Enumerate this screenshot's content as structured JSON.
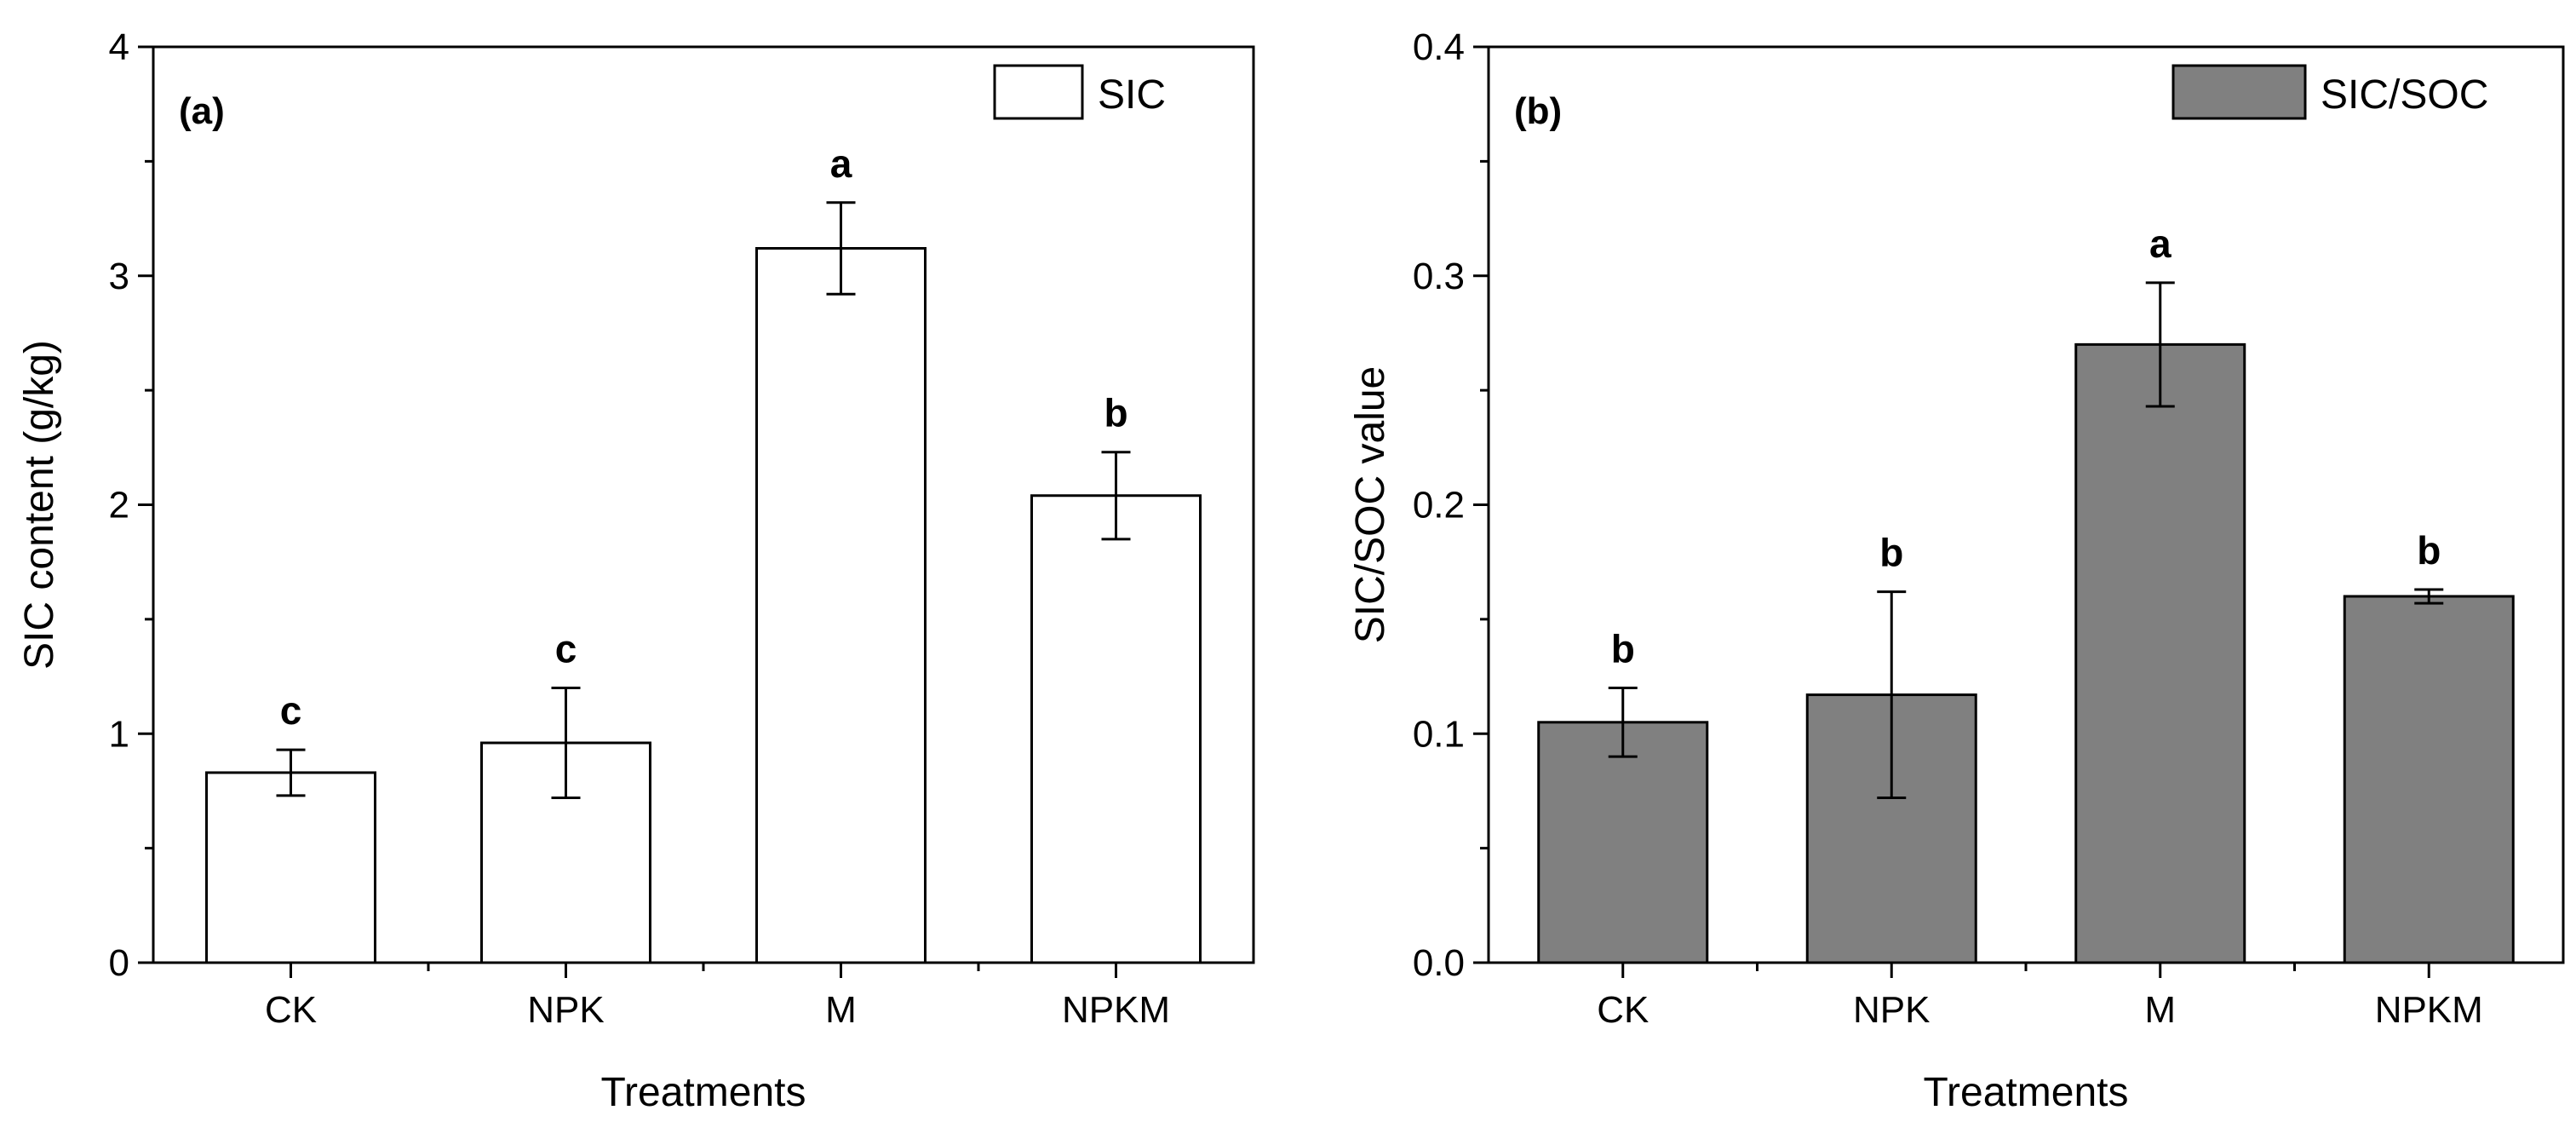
{
  "chart_data": [
    {
      "type": "bar",
      "panel_label": "(a)",
      "categories": [
        "CK",
        "NPK",
        "M",
        "NPKM"
      ],
      "series": [
        {
          "name": "SIC",
          "color": "#ffffff",
          "values": [
            0.83,
            0.96,
            3.12,
            2.04
          ],
          "errors": [
            0.1,
            0.24,
            0.2,
            0.19
          ],
          "significance": [
            "c",
            "c",
            "a",
            "b"
          ]
        }
      ],
      "xlabel": "Treatments",
      "ylabel": "SIC content (g/kg)",
      "ylim": [
        0,
        4
      ],
      "yticks": [
        "0",
        "1",
        "2",
        "3",
        "4"
      ],
      "legend_position": "top-right"
    },
    {
      "type": "bar",
      "panel_label": "(b)",
      "categories": [
        "CK",
        "NPK",
        "M",
        "NPKM"
      ],
      "series": [
        {
          "name": "SIC/SOC",
          "color": "#808080",
          "values": [
            0.105,
            0.117,
            0.27,
            0.16
          ],
          "errors": [
            0.015,
            0.045,
            0.027,
            0.003
          ],
          "significance": [
            "b",
            "b",
            "a",
            "b"
          ]
        }
      ],
      "xlabel": "Treatments",
      "ylabel": "SIC/SOC value",
      "ylim": [
        0,
        0.4
      ],
      "yticks": [
        "0.0",
        "0.1",
        "0.2",
        "0.3",
        "0.4"
      ],
      "legend_position": "top-right"
    }
  ]
}
